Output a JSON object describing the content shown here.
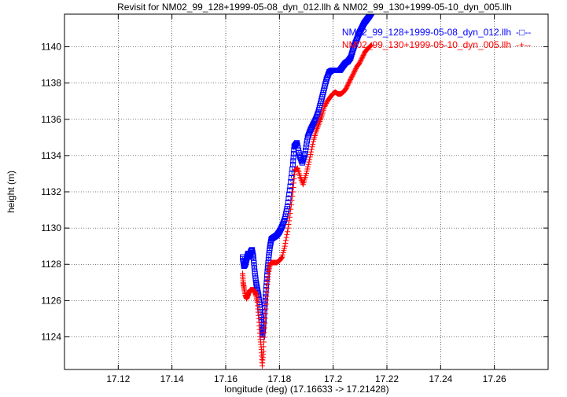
{
  "chart_data": {
    "type": "line",
    "title": "Revisit for NM02_99_128+1999-05-08_dyn_012.llh & NM02_99_130+1999-05-10_dyn_005.llh",
    "xlabel": "longitude (deg) (17.16633 -> 17.21428)",
    "ylabel": "height (m)",
    "xlim": [
      17.1,
      17.28
    ],
    "ylim": [
      1122.2,
      1141.8
    ],
    "x_ticks": [
      17.12,
      17.14,
      17.16,
      17.18,
      17.2,
      17.22,
      17.24,
      17.26
    ],
    "x_tick_labels": [
      "17.12",
      "17.14",
      "17.16",
      "17.18",
      "17.2",
      "17.22",
      "17.24",
      "17.26"
    ],
    "y_ticks": [
      1124,
      1126,
      1128,
      1130,
      1132,
      1134,
      1136,
      1138,
      1140
    ],
    "y_tick_labels": [
      "1124",
      "1126",
      "1128",
      "1130",
      "1132",
      "1134",
      "1136",
      "1138",
      "1140"
    ],
    "grid": true,
    "legend_position": "top-right",
    "series": [
      {
        "name": "NM02_99_128+1999-05-08_dyn_012.llh",
        "legend_marker": "-□--",
        "color": "#0000ff",
        "marker": "square",
        "points": [
          [
            17.1663,
            1128.4
          ],
          [
            17.1668,
            1127.9
          ],
          [
            17.1673,
            1128.0
          ],
          [
            17.1678,
            1128.3
          ],
          [
            17.1683,
            1128.6
          ],
          [
            17.1688,
            1128.4
          ],
          [
            17.1693,
            1128.7
          ],
          [
            17.1698,
            1128.8
          ],
          [
            17.1703,
            1128.4
          ],
          [
            17.1708,
            1127.6
          ],
          [
            17.1713,
            1127.0
          ],
          [
            17.1718,
            1126.6
          ],
          [
            17.1723,
            1126.2
          ],
          [
            17.1728,
            1125.5
          ],
          [
            17.1733,
            1124.8
          ],
          [
            17.1736,
            1124.0
          ],
          [
            17.174,
            1124.5
          ],
          [
            17.1745,
            1125.6
          ],
          [
            17.175,
            1126.6
          ],
          [
            17.1755,
            1127.6
          ],
          [
            17.176,
            1128.4
          ],
          [
            17.1765,
            1129.0
          ],
          [
            17.177,
            1129.4
          ],
          [
            17.178,
            1129.5
          ],
          [
            17.179,
            1129.6
          ],
          [
            17.18,
            1129.8
          ],
          [
            17.181,
            1130.1
          ],
          [
            17.182,
            1130.5
          ],
          [
            17.183,
            1131.2
          ],
          [
            17.184,
            1132.3
          ],
          [
            17.185,
            1133.5
          ],
          [
            17.1855,
            1134.5
          ],
          [
            17.1865,
            1134.7
          ],
          [
            17.1875,
            1134.0
          ],
          [
            17.1885,
            1133.6
          ],
          [
            17.1895,
            1134.1
          ],
          [
            17.1905,
            1135.0
          ],
          [
            17.1915,
            1135.4
          ],
          [
            17.1925,
            1135.7
          ],
          [
            17.1935,
            1136.0
          ],
          [
            17.1945,
            1136.4
          ],
          [
            17.1955,
            1137.0
          ],
          [
            17.1965,
            1137.6
          ],
          [
            17.1975,
            1138.2
          ],
          [
            17.1985,
            1138.6
          ],
          [
            17.1995,
            1138.7
          ],
          [
            17.2005,
            1138.7
          ],
          [
            17.2015,
            1138.7
          ],
          [
            17.2025,
            1138.7
          ],
          [
            17.2035,
            1138.9
          ],
          [
            17.2045,
            1139.1
          ],
          [
            17.2055,
            1139.2
          ],
          [
            17.2065,
            1139.4
          ],
          [
            17.2075,
            1139.9
          ],
          [
            17.2085,
            1140.3
          ],
          [
            17.2095,
            1140.7
          ],
          [
            17.2105,
            1141.0
          ],
          [
            17.2115,
            1141.3
          ],
          [
            17.2125,
            1141.5
          ],
          [
            17.2135,
            1141.7
          ],
          [
            17.2143,
            1141.9
          ]
        ]
      },
      {
        "name": "NM02_99_130+1999-05-10_dyn_005.llh",
        "legend_marker": "-+--",
        "color": "#ff0000",
        "marker": "plus",
        "points": [
          [
            17.1663,
            1127.5
          ],
          [
            17.1665,
            1127.0
          ],
          [
            17.1668,
            1126.7
          ],
          [
            17.1673,
            1126.3
          ],
          [
            17.1678,
            1126.1
          ],
          [
            17.1683,
            1126.3
          ],
          [
            17.1688,
            1126.5
          ],
          [
            17.1693,
            1126.6
          ],
          [
            17.1698,
            1126.6
          ],
          [
            17.1703,
            1126.6
          ],
          [
            17.1708,
            1126.5
          ],
          [
            17.1713,
            1126.3
          ],
          [
            17.1718,
            1125.9
          ],
          [
            17.1723,
            1125.0
          ],
          [
            17.1728,
            1124.0
          ],
          [
            17.1733,
            1123.3
          ],
          [
            17.1736,
            1122.4
          ],
          [
            17.174,
            1123.2
          ],
          [
            17.1745,
            1124.5
          ],
          [
            17.175,
            1125.8
          ],
          [
            17.1755,
            1126.9
          ],
          [
            17.176,
            1127.6
          ],
          [
            17.1765,
            1128.0
          ],
          [
            17.177,
            1128.1
          ],
          [
            17.178,
            1128.1
          ],
          [
            17.179,
            1128.1
          ],
          [
            17.18,
            1128.2
          ],
          [
            17.181,
            1128.4
          ],
          [
            17.182,
            1129.0
          ],
          [
            17.183,
            1129.8
          ],
          [
            17.184,
            1130.8
          ],
          [
            17.185,
            1132.0
          ],
          [
            17.1858,
            1133.2
          ],
          [
            17.1868,
            1133.3
          ],
          [
            17.1878,
            1132.8
          ],
          [
            17.1888,
            1132.4
          ],
          [
            17.1898,
            1132.9
          ],
          [
            17.1908,
            1133.5
          ],
          [
            17.1918,
            1134.2
          ],
          [
            17.1928,
            1134.9
          ],
          [
            17.1938,
            1135.4
          ],
          [
            17.1948,
            1135.8
          ],
          [
            17.1958,
            1136.2
          ],
          [
            17.1968,
            1136.7
          ],
          [
            17.1978,
            1137.0
          ],
          [
            17.1988,
            1137.2
          ],
          [
            17.1998,
            1137.4
          ],
          [
            17.2008,
            1137.5
          ],
          [
            17.2018,
            1137.4
          ],
          [
            17.2028,
            1137.4
          ],
          [
            17.2038,
            1137.5
          ],
          [
            17.2048,
            1137.7
          ],
          [
            17.2058,
            1138.0
          ],
          [
            17.2068,
            1138.3
          ],
          [
            17.2078,
            1138.6
          ],
          [
            17.2088,
            1138.9
          ],
          [
            17.2098,
            1139.1
          ],
          [
            17.2108,
            1139.4
          ],
          [
            17.2118,
            1139.7
          ],
          [
            17.2128,
            1139.9
          ],
          [
            17.2143,
            1140.1
          ]
        ]
      }
    ]
  }
}
